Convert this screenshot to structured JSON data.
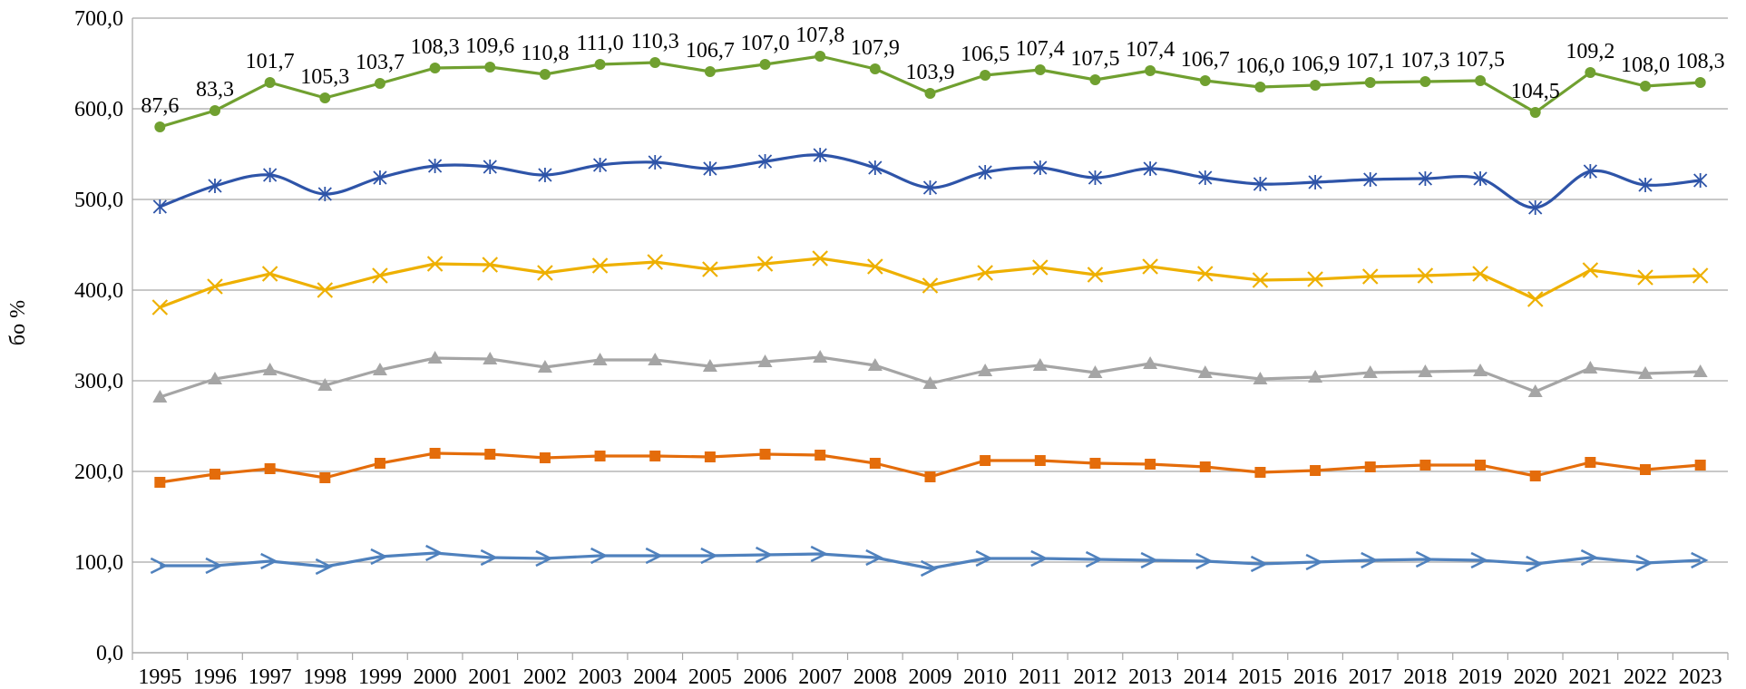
{
  "chart_data": {
    "type": "line",
    "title": "",
    "xlabel": "",
    "ylabel": "бо %",
    "ylim": [
      0,
      700
    ],
    "yticks": [
      "0,0",
      "100,0",
      "200,0",
      "300,0",
      "400,0",
      "500,0",
      "600,0",
      "700,0"
    ],
    "grid": "horizontal",
    "x": [
      "1995",
      "1996",
      "1997",
      "1998",
      "1999",
      "2000",
      "2001",
      "2002",
      "2003",
      "2004",
      "2005",
      "2006",
      "2007",
      "2008",
      "2009",
      "2010",
      "2011",
      "2012",
      "2013",
      "2014",
      "2015",
      "2016",
      "2017",
      "2018",
      "2019",
      "2020",
      "2021",
      "2022",
      "2023"
    ],
    "series": [
      {
        "color": "#4F81BD",
        "marker": "arrow",
        "values": [
          96,
          96,
          101,
          95,
          106,
          110,
          105,
          104,
          107,
          107,
          107,
          108,
          109,
          105,
          93,
          104,
          104,
          103,
          102,
          101,
          98,
          100,
          102,
          103,
          102,
          98,
          105,
          99,
          102
        ]
      },
      {
        "color": "#E46C0A",
        "marker": "square",
        "values": [
          188,
          197,
          203,
          193,
          209,
          220,
          219,
          215,
          217,
          217,
          216,
          219,
          218,
          209,
          194,
          212,
          212,
          209,
          208,
          205,
          199,
          201,
          205,
          207,
          207,
          195,
          210,
          202,
          207
        ]
      },
      {
        "color": "#A5A5A5",
        "marker": "triangle",
        "values": [
          282,
          302,
          312,
          295,
          312,
          325,
          324,
          315,
          323,
          323,
          316,
          321,
          326,
          317,
          297,
          311,
          317,
          309,
          319,
          309,
          302,
          304,
          309,
          310,
          311,
          288,
          314,
          308,
          310
        ]
      },
      {
        "color": "#EEB000",
        "marker": "x",
        "values": [
          381,
          404,
          418,
          400,
          416,
          429,
          428,
          419,
          427,
          431,
          423,
          429,
          435,
          426,
          405,
          419,
          425,
          417,
          426,
          418,
          411,
          412,
          415,
          416,
          418,
          390,
          422,
          414,
          416
        ]
      },
      {
        "color": "#2E54A8",
        "marker": "star",
        "values": [
          492,
          515,
          527,
          506,
          524,
          537,
          536,
          527,
          538,
          541,
          534,
          542,
          549,
          535,
          513,
          530,
          535,
          524,
          534,
          524,
          517,
          519,
          522,
          523,
          523,
          491,
          531,
          516,
          521
        ]
      },
      {
        "color": "#70A030",
        "marker": "circle",
        "values": [
          580,
          598,
          629,
          612,
          628,
          645,
          646,
          638,
          649,
          651,
          641,
          649,
          658,
          644,
          617,
          637,
          643,
          632,
          642,
          631,
          624,
          626,
          629,
          630,
          631,
          596,
          640,
          625,
          629
        ],
        "labels": [
          "87,6",
          "83,3",
          "101,7",
          "105,3",
          "103,7",
          "108,3",
          "109,6",
          "110,8",
          "111,0",
          "110,3",
          "106,7",
          "107,0",
          "107,8",
          "107,9",
          "103,9",
          "106,5",
          "107,4",
          "107,5",
          "107,4",
          "106,7",
          "106,0",
          "106,9",
          "107,1",
          "107,3",
          "107,5",
          "104,5",
          "109,2",
          "108,0",
          "108,3"
        ]
      }
    ]
  }
}
